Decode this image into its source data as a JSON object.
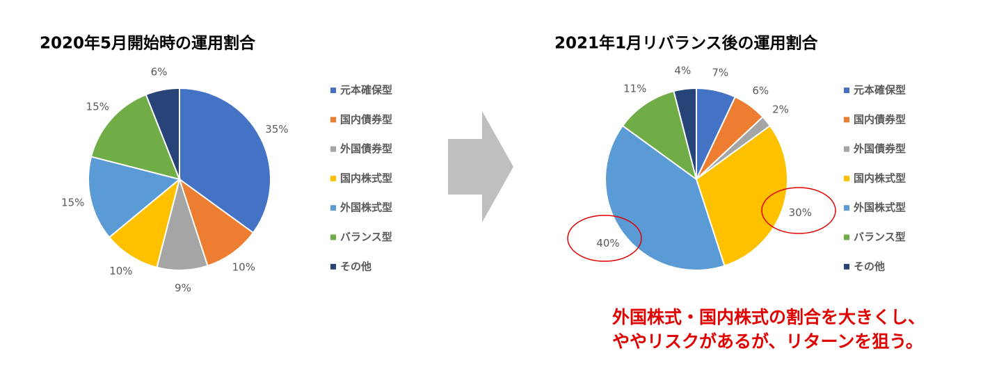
{
  "chart_data": [
    {
      "type": "pie",
      "title": "2020年5月開始時の運用割合",
      "categories": [
        "元本確保型",
        "国内債券型",
        "外国債券型",
        "国内株式型",
        "外国株式型",
        "バランス型",
        "その他"
      ],
      "values": [
        35,
        10,
        9,
        10,
        15,
        15,
        6
      ],
      "value_labels": [
        "35%",
        "10%",
        "9%",
        "10%",
        "15%",
        "15%",
        "6%"
      ],
      "colors": [
        "#4472c4",
        "#ed7d31",
        "#a5a5a5",
        "#ffc000",
        "#5b9bd5",
        "#70ad47",
        "#264478"
      ],
      "legend": "right"
    },
    {
      "type": "pie",
      "title": "2021年1月リバランス後の運用割合",
      "categories": [
        "元本確保型",
        "国内債券型",
        "外国債券型",
        "国内株式型",
        "外国株式型",
        "バランス型",
        "その他"
      ],
      "values": [
        7,
        6,
        2,
        30,
        40,
        11,
        4
      ],
      "value_labels": [
        "7%",
        "6%",
        "2%",
        "30%",
        "40%",
        "11%",
        "4%"
      ],
      "colors": [
        "#4472c4",
        "#ed7d31",
        "#a5a5a5",
        "#ffc000",
        "#5b9bd5",
        "#70ad47",
        "#264478"
      ],
      "legend": "right",
      "annotations": [
        "外国株式・国内株式の割合を大きくし、",
        "ややリスクがあるが、リターンを狙う。"
      ]
    }
  ]
}
